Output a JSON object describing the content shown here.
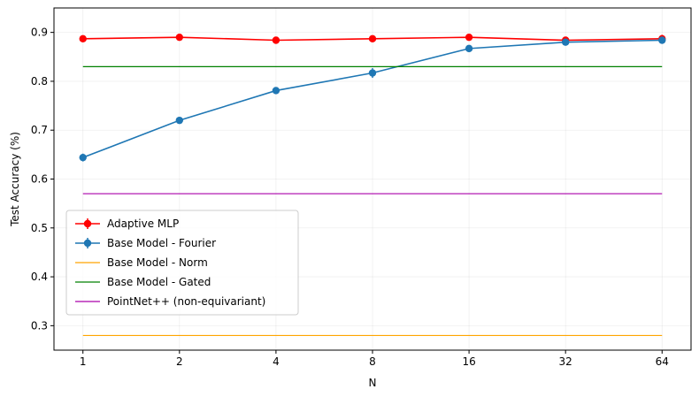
{
  "chart_data": {
    "type": "line",
    "title": "",
    "xlabel": "N",
    "ylabel": "Test Accuracy (%)",
    "x": [
      1,
      2,
      4,
      8,
      16,
      32,
      64
    ],
    "x_scale": "log2",
    "xticks": [
      "1",
      "2",
      "4",
      "8",
      "16",
      "32",
      "64"
    ],
    "ylim": [
      0.25,
      0.95
    ],
    "yticks": [
      "0.3",
      "0.4",
      "0.5",
      "0.6",
      "0.7",
      "0.8",
      "0.9"
    ],
    "grid": true,
    "legend_position": "lower-left",
    "series": [
      {
        "name": "Adaptive MLP",
        "kind": "errorbar",
        "color": "#ff0000",
        "values": [
          0.887,
          0.89,
          0.884,
          0.887,
          0.89,
          0.884,
          0.887
        ],
        "errors": [
          0.003,
          0.003,
          0.003,
          0.003,
          0.003,
          0.003,
          0.008
        ]
      },
      {
        "name": "Base Model - Fourier",
        "kind": "errorbar",
        "color": "#1f77b4",
        "values": [
          0.644,
          0.72,
          0.781,
          0.817,
          0.867,
          0.88,
          0.884
        ],
        "errors": [
          0.008,
          0.004,
          0.004,
          0.01,
          0.003,
          0.004,
          0.004
        ]
      },
      {
        "name": "Base Model - Norm",
        "kind": "hline",
        "color": "#ffa500",
        "value": 0.28
      },
      {
        "name": "Base Model - Gated",
        "kind": "hline",
        "color": "#008000",
        "value": 0.83
      },
      {
        "name": "PointNet++ (non-equivariant)",
        "kind": "hline",
        "color": "#aa00aa",
        "value": 0.57
      }
    ]
  }
}
